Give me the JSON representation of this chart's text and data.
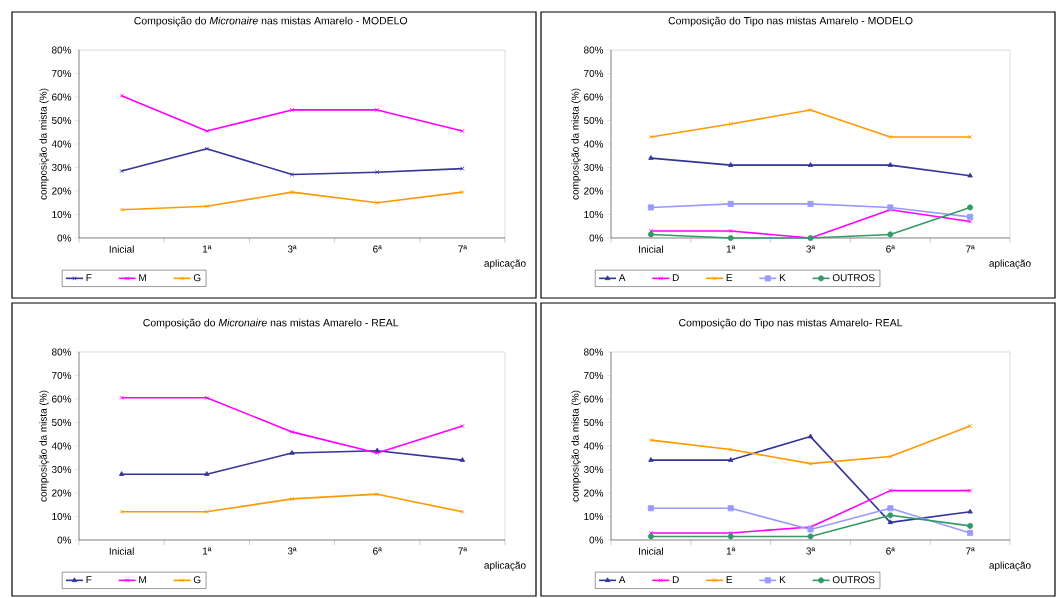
{
  "chart_data": [
    {
      "type": "line",
      "title": "Composição do *Micronaire* nas mistas Amarelo - MODELO",
      "xlabel": "aplicação",
      "ylabel": "composição da mista (%)",
      "categories": [
        "Inicial",
        "1ª",
        "3ª",
        "6ª",
        "7ª"
      ],
      "ylim": [
        0,
        80
      ],
      "yticks": [
        {
          "value": 0,
          "label": "0%"
        },
        {
          "value": 10,
          "label": "10%"
        },
        {
          "value": 20,
          "label": "20%"
        },
        {
          "value": 30,
          "label": "30%"
        },
        {
          "value": 40,
          "label": "40%"
        },
        {
          "value": 50,
          "label": "50%"
        },
        {
          "value": 60,
          "label": "60%"
        },
        {
          "value": 70,
          "label": "70%"
        },
        {
          "value": 80,
          "label": "80%"
        }
      ],
      "legend": "bottom",
      "series": [
        {
          "name": "F",
          "color": "#333399",
          "marker": "cross",
          "values": [
            28.5,
            38,
            27,
            28,
            29.5
          ]
        },
        {
          "name": "M",
          "color": "#ff00ff",
          "marker": "cross",
          "values": [
            60.5,
            45.5,
            54.5,
            54.5,
            45.5
          ]
        },
        {
          "name": "G",
          "color": "#ff9900",
          "marker": "cross",
          "values": [
            12,
            13.5,
            19.5,
            15,
            19.5
          ]
        }
      ]
    },
    {
      "type": "line",
      "title": "Composição do Tipo nas mistas Amarelo - MODELO",
      "xlabel": "aplicação",
      "ylabel": "composição da mista (%)",
      "categories": [
        "Inicial",
        "1ª",
        "3ª",
        "6ª",
        "7ª"
      ],
      "ylim": [
        0,
        80
      ],
      "yticks": [
        {
          "value": 0,
          "label": "0%"
        },
        {
          "value": 10,
          "label": "10%"
        },
        {
          "value": 20,
          "label": "20%"
        },
        {
          "value": 30,
          "label": "30%"
        },
        {
          "value": 40,
          "label": "40%"
        },
        {
          "value": 50,
          "label": "50%"
        },
        {
          "value": 60,
          "label": "60%"
        },
        {
          "value": 70,
          "label": "70%"
        },
        {
          "value": 80,
          "label": "80%"
        }
      ],
      "legend": "bottom",
      "series": [
        {
          "name": "A",
          "color": "#333399",
          "marker": "triangle",
          "values": [
            34,
            31,
            31,
            31,
            26.5
          ]
        },
        {
          "name": "D",
          "color": "#ff00ff",
          "marker": "cross",
          "values": [
            3,
            3,
            0,
            12,
            7
          ]
        },
        {
          "name": "E",
          "color": "#ff9900",
          "marker": "cross",
          "values": [
            43,
            48.5,
            54.5,
            43,
            43
          ]
        },
        {
          "name": "K",
          "color": "#9999ff",
          "marker": "square",
          "values": [
            13,
            14.5,
            14.5,
            13,
            9
          ]
        },
        {
          "name": "OUTROS",
          "color": "#339966",
          "marker": "circle",
          "values": [
            1.5,
            0,
            0,
            1.5,
            13
          ]
        }
      ]
    },
    {
      "type": "line",
      "title": "Composição do *Micronaire* nas mistas Amarelo - REAL",
      "xlabel": "aplicação",
      "ylabel": "composição da mista (%)",
      "categories": [
        "Inicial",
        "1ª",
        "3ª",
        "6ª",
        "7ª"
      ],
      "ylim": [
        0,
        80
      ],
      "yticks": [
        {
          "value": 0,
          "label": "0%"
        },
        {
          "value": 10,
          "label": "10%"
        },
        {
          "value": 20,
          "label": "20%"
        },
        {
          "value": 30,
          "label": "30%"
        },
        {
          "value": 40,
          "label": "40%"
        },
        {
          "value": 50,
          "label": "50%"
        },
        {
          "value": 60,
          "label": "60%"
        },
        {
          "value": 70,
          "label": "70%"
        },
        {
          "value": 80,
          "label": "80%"
        }
      ],
      "legend": "bottom",
      "series": [
        {
          "name": "F",
          "color": "#333399",
          "marker": "triangle",
          "values": [
            28,
            28,
            37,
            38,
            34
          ]
        },
        {
          "name": "M",
          "color": "#ff00ff",
          "marker": "cross",
          "values": [
            60.5,
            60.5,
            46,
            37,
            48.5
          ]
        },
        {
          "name": "G",
          "color": "#ff9900",
          "marker": "cross",
          "values": [
            12,
            12,
            17.5,
            19.5,
            12
          ]
        }
      ]
    },
    {
      "type": "line",
      "title": "Composição do Tipo nas mistas Amarelo- REAL",
      "xlabel": "aplicação",
      "ylabel": "composição da mista (%)",
      "categories": [
        "Inicial",
        "1ª",
        "3ª",
        "6ª",
        "7ª"
      ],
      "ylim": [
        0,
        80
      ],
      "yticks": [
        {
          "value": 0,
          "label": "0%"
        },
        {
          "value": 10,
          "label": "10%"
        },
        {
          "value": 20,
          "label": "20%"
        },
        {
          "value": 30,
          "label": "30%"
        },
        {
          "value": 40,
          "label": "40%"
        },
        {
          "value": 50,
          "label": "50%"
        },
        {
          "value": 60,
          "label": "60%"
        },
        {
          "value": 70,
          "label": "70%"
        },
        {
          "value": 80,
          "label": "80%"
        }
      ],
      "legend": "bottom",
      "series": [
        {
          "name": "A",
          "color": "#333399",
          "marker": "triangle",
          "values": [
            34,
            34,
            44,
            7.5,
            12
          ]
        },
        {
          "name": "D",
          "color": "#ff00ff",
          "marker": "cross",
          "values": [
            3,
            3,
            5.5,
            21,
            21
          ]
        },
        {
          "name": "E",
          "color": "#ff9900",
          "marker": "cross",
          "values": [
            42.5,
            38.5,
            32.5,
            35.5,
            48.5
          ]
        },
        {
          "name": "K",
          "color": "#9999ff",
          "marker": "square",
          "values": [
            13.5,
            13.5,
            4.5,
            13.5,
            3
          ]
        },
        {
          "name": "OUTROS",
          "color": "#339966",
          "marker": "circle",
          "values": [
            1.5,
            1.5,
            1.5,
            10.5,
            6
          ]
        }
      ]
    }
  ]
}
